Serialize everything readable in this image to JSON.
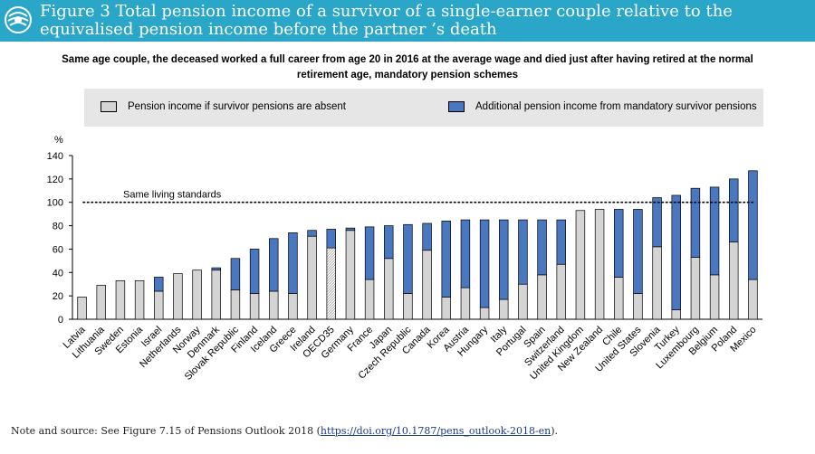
{
  "header": {
    "title_line1": "Figure 3 Total pension income of a survivor of a single-earner couple relative to the",
    "title_line2": "equivalised pension income before the partner ’s death",
    "bg_color": "#2aa6c8"
  },
  "subtitle_line1": "Same age couple, the deceased worked a full career from age 20 in 2016 at the average wage and died just after having retired at the normal",
  "subtitle_line2": "retirement age, mandatory pension schemes",
  "footer": {
    "note_prefix": "Note and source: See Figure 7.15 of Pensions Outlook 2018 (",
    "link_text": "https://doi.org/10.1787/pens_outlook-2018-en",
    "note_suffix": ")."
  },
  "chart_data": {
    "type": "bar",
    "stacked": true,
    "ylabel": "%",
    "ylim": [
      0,
      140
    ],
    "yticks": [
      0,
      20,
      40,
      60,
      80,
      100,
      120,
      140
    ],
    "grid": false,
    "legend_position": "top",
    "reference_line": {
      "value": 100,
      "label": "Same living standards"
    },
    "categories": [
      "Latvia",
      "Lithuania",
      "Sweden",
      "Estonia",
      "Israel",
      "Netherlands",
      "Norway",
      "Denmark",
      "Slovak Republic",
      "Finland",
      "Iceland",
      "Greece",
      "Ireland",
      "OECD35",
      "Germany",
      "France",
      "Japan",
      "Czech Republic",
      "Canada",
      "Korea",
      "Austria",
      "Hungary",
      "Italy",
      "Portugal",
      "Spain",
      "Switzerland",
      "United Kingdom",
      "New Zealand",
      "Chile",
      "United States",
      "Slovenia",
      "Turkey",
      "Luxembourg",
      "Belgium",
      "Poland",
      "Mexico"
    ],
    "highlight_category": "OECD35",
    "series": [
      {
        "name": "Pension income if survivor pensions are absent",
        "color": "#d4d4d4",
        "values": [
          19,
          29,
          33,
          33,
          24,
          39,
          42,
          42,
          25,
          22,
          24,
          22,
          71,
          61,
          76,
          34,
          52,
          22,
          59,
          19,
          27,
          10,
          17,
          30,
          38,
          47,
          93,
          94,
          36,
          22,
          62,
          8,
          53,
          38,
          66,
          34
        ]
      },
      {
        "name": "Additional pension income from mandatory survivor pensions",
        "color": "#4a78c0",
        "values": [
          0,
          0,
          0,
          0,
          12,
          0,
          0,
          2,
          27,
          38,
          45,
          52,
          5,
          16,
          2,
          45,
          28,
          59,
          23,
          65,
          58,
          75,
          68,
          55,
          47,
          38,
          0,
          0,
          58,
          72,
          42,
          98,
          59,
          75,
          54,
          93
        ]
      }
    ]
  }
}
